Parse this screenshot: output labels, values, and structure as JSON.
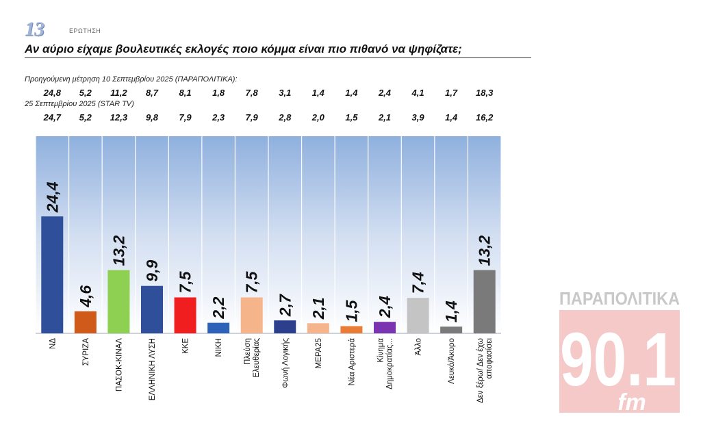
{
  "header": {
    "question_number": "13",
    "question_word": "ΕΡΩΤΗΣΗ",
    "title": "Αν αύριο είχαμε βουλευτικές εκλογές ποιο κόμμα είναι πιο πιθανό να ψηφίζατε;"
  },
  "previous": {
    "label_1": "Προηγούμενη μέτρηση 10 Σεπτεμβρίου 2025 (ΠΑΡΑΠΟΛΙΤΙΚΑ):",
    "values_1": [
      "24,8",
      "5,2",
      "11,2",
      "8,7",
      "8,1",
      "1,8",
      "7,8",
      "3,1",
      "1,4",
      "1,4",
      "2,4",
      "4,1",
      "1,7",
      "18,3"
    ],
    "label_2": "25 Σεπτεμβρίου 2025 (STAR TV)",
    "values_2": [
      "24,7",
      "5,2",
      "12,3",
      "9,8",
      "7,9",
      "2,3",
      "7,9",
      "2,8",
      "2,0",
      "1,5",
      "2,1",
      "3,9",
      "1,4",
      "16,2"
    ]
  },
  "chart_data": {
    "type": "bar",
    "title": "Αν αύριο είχαμε βουλευτικές εκλογές ποιο κόμμα είναι πιο πιθανό να ψηφίζατε;",
    "categories": [
      [
        "ΝΔ"
      ],
      [
        "ΣΥΡΙΖΑ"
      ],
      [
        "ΠΑΣΟΚ-ΚΙΝΑΛ"
      ],
      [
        "ΕΛΛΗΝΙΚΗ ΛΥΣΗ"
      ],
      [
        "ΚΚΕ"
      ],
      [
        "ΝΙΚΗ"
      ],
      [
        "Πλεύση",
        "Ελευθερίας"
      ],
      [
        "Φωνή Λογικής"
      ],
      [
        "ΜΕΡΑ25"
      ],
      [
        "Νέα Αριστερά"
      ],
      [
        "Κίνημα",
        "Δημοκρατίας..."
      ],
      [
        "Άλλο"
      ],
      [
        "Λευκό/Άκυρο"
      ],
      [
        "Δεν ξέρω/ Δεν έχω",
        "αποφασίσει"
      ]
    ],
    "values": [
      24.4,
      4.6,
      13.2,
      9.9,
      7.5,
      2.2,
      7.5,
      2.7,
      2.1,
      1.5,
      2.4,
      7.4,
      1.4,
      13.2
    ],
    "value_labels": [
      "24,4",
      "4,6",
      "13,2",
      "9,9",
      "7,5",
      "2,2",
      "7,5",
      "2,7",
      "2,1",
      "1,5",
      "2,4",
      "7,4",
      "1,4",
      "13,2"
    ],
    "colors": [
      "#2f4f9a",
      "#d05a1a",
      "#8ed152",
      "#2f4f9a",
      "#f01e1e",
      "#2e62b8",
      "#f5b48a",
      "#2b3f8c",
      "#f5b48a",
      "#ea7d35",
      "#7b34b0",
      "#c4c4c4",
      "#7a7a7a",
      "#7a7a7a"
    ],
    "ylim": [
      0,
      30
    ],
    "xlabel": "",
    "ylabel": "",
    "grid": false
  },
  "logo": {
    "line1": "ΠΑΡΑΠΟΛΙΤΙΚΑ",
    "line2": "90.1",
    "line3": "fm"
  }
}
